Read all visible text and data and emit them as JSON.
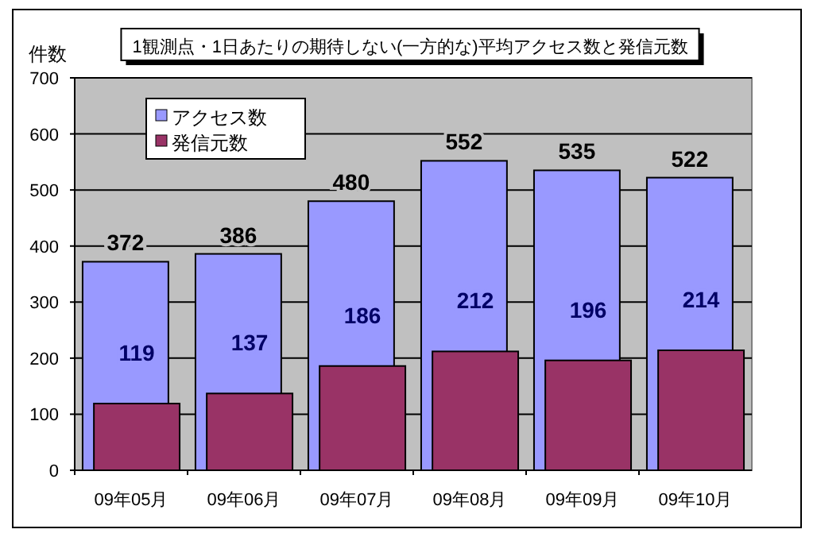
{
  "chart_data": {
    "type": "bar",
    "title": "1観測点・1日あたりの期待しない(一方的な)平均アクセス数と発信元数",
    "ylabel": "件数",
    "categories": [
      "09年05月",
      "09年06月",
      "09年07月",
      "09年08月",
      "09年09月",
      "09年10月"
    ],
    "series": [
      {
        "name": "アクセス数",
        "color": "#9999ff",
        "values": [
          372,
          386,
          480,
          552,
          535,
          522
        ]
      },
      {
        "name": "発信元数",
        "color": "#993366",
        "values": [
          119,
          137,
          186,
          212,
          196,
          214
        ]
      }
    ],
    "ylim": [
      0,
      700
    ],
    "yticks": [
      0,
      100,
      200,
      300,
      400,
      500,
      600,
      700
    ],
    "grid": "y",
    "legend": "top left",
    "data_labels": true
  }
}
